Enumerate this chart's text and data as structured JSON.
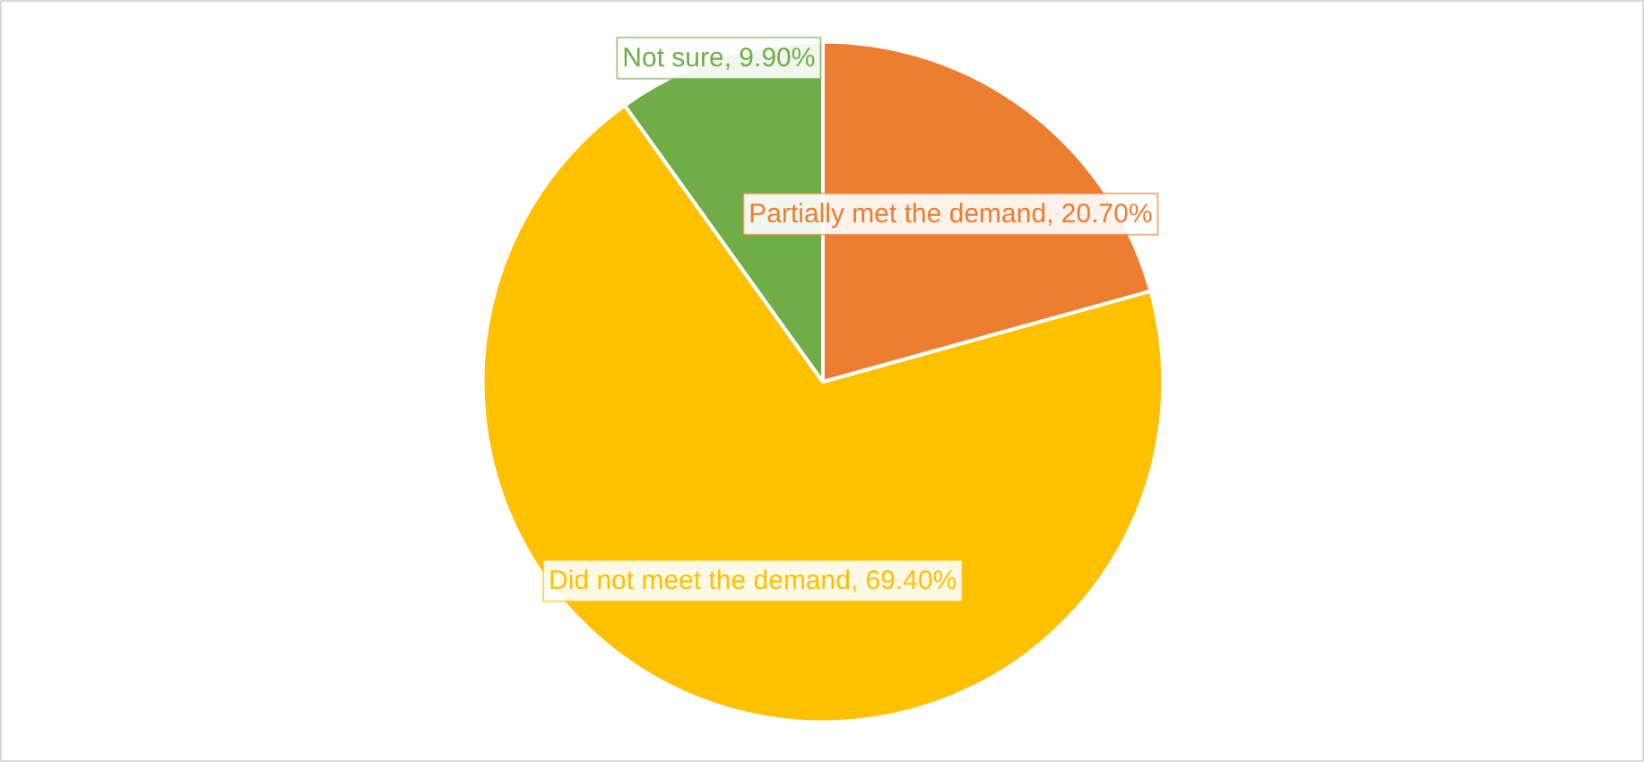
{
  "chart_data": {
    "type": "pie",
    "categories": [
      "Partially met the demand",
      "Did not meet the demand",
      "Not sure"
    ],
    "values": [
      20.7,
      69.4,
      9.9
    ],
    "value_labels": [
      "20.70%",
      "69.40%",
      "9.90%"
    ],
    "colors": [
      "#ed7d31",
      "#ffc000",
      "#70ad47"
    ]
  }
}
